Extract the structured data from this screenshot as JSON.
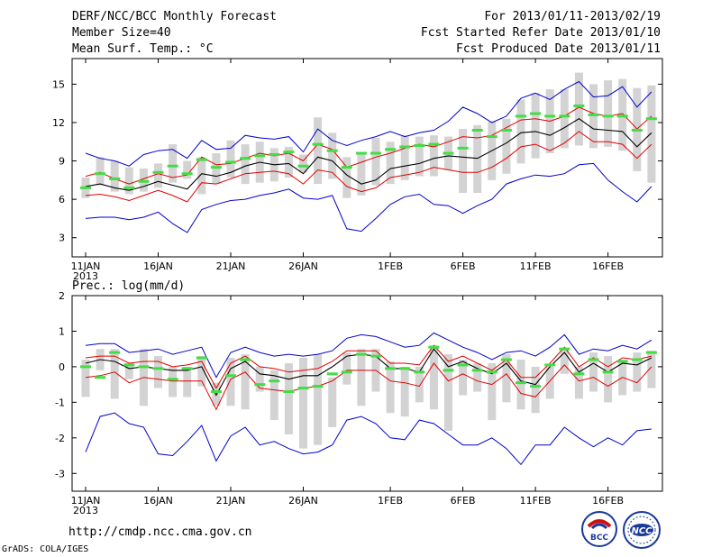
{
  "header": {
    "title": "DERF/NCC/BCC Monthly Forecast",
    "member": "Member Size=40",
    "period": "For 2013/01/11-2013/02/19",
    "started": "Fcst Started Refer Date 2013/01/10",
    "produced": "Fcst Produced Date 2013/01/11"
  },
  "footer": {
    "url": "http://cmdp.ncc.cma.gov.cn",
    "grads": "GrADS: COLA/IGES",
    "logo1_text": "BCC",
    "logo2_text": "NCC"
  },
  "colors": {
    "box": "#d3d3d3",
    "mean": "#000000",
    "spread": "#e00000",
    "extreme": "#0000cc",
    "obs": "#44dd44"
  },
  "chart_data": [
    {
      "type": "line",
      "title": "Mean Surf. Temp.: °C",
      "xlabel": "",
      "ylabel": "",
      "ylim": [
        1.5,
        17
      ],
      "yticks": [
        3,
        6,
        9,
        12,
        15
      ],
      "xtick_labels": [
        "11JAN",
        "16JAN",
        "21JAN",
        "26JAN",
        "1FEB",
        "6FEB",
        "11FEB",
        "16FEB"
      ],
      "xtick_year": "2013",
      "x": [
        1,
        2,
        3,
        4,
        5,
        6,
        7,
        8,
        9,
        10,
        11,
        12,
        13,
        14,
        15,
        16,
        17,
        18,
        19,
        20,
        21,
        22,
        23,
        24,
        25,
        26,
        27,
        28,
        29,
        30,
        31,
        32,
        33,
        34,
        35,
        36,
        37,
        38,
        39,
        40
      ],
      "series": [
        {
          "name": "max",
          "values": [
            9.6,
            9.2,
            9.0,
            8.6,
            9.5,
            9.8,
            9.9,
            9.2,
            10.6,
            9.9,
            10.0,
            11.0,
            10.8,
            10.7,
            10.9,
            9.7,
            11.5,
            10.6,
            10.2,
            10.6,
            10.9,
            11.3,
            10.9,
            11.2,
            11.4,
            12.1,
            13.2,
            12.7,
            12.0,
            12.5,
            13.9,
            14.3,
            13.8,
            14.6,
            15.2,
            14.0,
            14.1,
            14.8,
            13.2,
            14.4
          ]
        },
        {
          "name": "upper",
          "values": [
            7.8,
            8.1,
            7.6,
            7.2,
            7.6,
            8.0,
            7.7,
            7.9,
            9.3,
            8.7,
            8.8,
            9.2,
            9.6,
            9.4,
            9.6,
            9.0,
            10.3,
            9.9,
            8.5,
            8.9,
            9.3,
            9.6,
            10.0,
            10.3,
            10.1,
            10.5,
            10.9,
            10.8,
            11.0,
            11.6,
            12.2,
            12.3,
            12.1,
            12.5,
            13.2,
            12.7,
            12.5,
            12.7,
            11.5,
            12.5
          ]
        },
        {
          "name": "mean",
          "values": [
            7.0,
            7.2,
            6.9,
            6.7,
            7.0,
            7.4,
            7.1,
            6.8,
            8.0,
            7.8,
            8.1,
            8.6,
            8.9,
            8.7,
            8.8,
            8.0,
            9.3,
            9.0,
            7.9,
            7.2,
            7.5,
            8.4,
            8.6,
            8.8,
            9.2,
            9.4,
            9.3,
            9.2,
            9.8,
            10.4,
            11.2,
            11.3,
            11.0,
            11.6,
            12.3,
            11.5,
            11.4,
            11.3,
            10.1,
            11.2
          ]
        },
        {
          "name": "lower",
          "values": [
            6.3,
            6.4,
            6.2,
            5.9,
            6.3,
            6.7,
            6.3,
            5.8,
            7.3,
            7.2,
            7.6,
            8.0,
            8.1,
            8.2,
            8.0,
            7.2,
            8.3,
            8.1,
            7.0,
            6.6,
            6.9,
            7.7,
            7.9,
            8.1,
            8.5,
            8.3,
            8.1,
            8.1,
            8.5,
            9.2,
            10.1,
            10.3,
            9.8,
            10.4,
            11.3,
            10.5,
            10.5,
            10.3,
            9.2,
            10.3
          ]
        },
        {
          "name": "min",
          "values": [
            4.5,
            4.6,
            4.6,
            4.4,
            4.6,
            5.0,
            4.1,
            3.4,
            5.2,
            5.6,
            5.9,
            6.0,
            6.3,
            6.5,
            6.8,
            6.1,
            6.0,
            6.3,
            3.7,
            3.5,
            4.5,
            5.6,
            6.2,
            6.4,
            5.6,
            5.5,
            4.9,
            5.5,
            6.0,
            7.2,
            7.6,
            7.9,
            7.8,
            8.0,
            8.7,
            8.8,
            7.5,
            6.6,
            5.8,
            7.0
          ]
        }
      ],
      "boxes": [
        [
          6.1,
          7.7
        ],
        [
          7.1,
          9.3
        ],
        [
          6.6,
          9.0
        ],
        [
          6.4,
          8.5
        ],
        [
          6.6,
          8.4
        ],
        [
          6.9,
          8.8
        ],
        [
          7.3,
          10.3
        ],
        [
          7.6,
          9.0
        ],
        [
          6.4,
          9.3
        ],
        [
          7.2,
          9.6
        ],
        [
          7.7,
          10.6
        ],
        [
          7.2,
          10.3
        ],
        [
          7.3,
          10.5
        ],
        [
          7.4,
          10.0
        ],
        [
          7.7,
          10.1
        ],
        [
          8.1,
          9.5
        ],
        [
          7.2,
          12.4
        ],
        [
          7.6,
          11.2
        ],
        [
          6.1,
          9.3
        ],
        [
          6.3,
          9.5
        ],
        [
          7.1,
          10.8
        ],
        [
          7.2,
          10.5
        ],
        [
          7.5,
          11.0
        ],
        [
          7.8,
          10.9
        ],
        [
          7.8,
          11.0
        ],
        [
          8.3,
          10.9
        ],
        [
          6.5,
          11.5
        ],
        [
          6.5,
          11.8
        ],
        [
          7.5,
          12.1
        ],
        [
          8.0,
          12.3
        ],
        [
          8.8,
          13.8
        ],
        [
          9.2,
          14.3
        ],
        [
          9.6,
          14.6
        ],
        [
          10.0,
          14.6
        ],
        [
          10.2,
          15.9
        ],
        [
          10.0,
          15.0
        ],
        [
          10.1,
          15.3
        ],
        [
          9.8,
          15.4
        ],
        [
          8.2,
          14.7
        ],
        [
          7.3,
          14.9
        ]
      ],
      "observed": [
        6.9,
        8.0,
        7.6,
        6.9,
        7.4,
        8.1,
        8.6,
        8.0,
        9.1,
        8.5,
        8.9,
        9.2,
        9.4,
        9.5,
        9.7,
        8.6,
        10.3,
        9.8,
        8.5,
        9.6,
        9.6,
        9.9,
        10.1,
        10.2,
        10.3,
        9.6,
        10.0,
        11.4,
        10.9,
        11.4,
        12.5,
        12.7,
        12.5,
        12.5,
        13.3,
        12.6,
        12.5,
        12.5,
        11.4,
        12.3
      ]
    },
    {
      "type": "line",
      "title": "Prec.: log(mm/d)",
      "xlabel": "",
      "ylabel": "",
      "ylim": [
        -3.5,
        2
      ],
      "yticks": [
        -3,
        -2,
        -1,
        0,
        1,
        2
      ],
      "xtick_labels": [
        "11JAN",
        "16JAN",
        "21JAN",
        "26JAN",
        "1FEB",
        "6FEB",
        "11FEB",
        "16FEB"
      ],
      "xtick_year": "2013",
      "x": [
        1,
        2,
        3,
        4,
        5,
        6,
        7,
        8,
        9,
        10,
        11,
        12,
        13,
        14,
        15,
        16,
        17,
        18,
        19,
        20,
        21,
        22,
        23,
        24,
        25,
        26,
        27,
        28,
        29,
        30,
        31,
        32,
        33,
        34,
        35,
        36,
        37,
        38,
        39,
        40
      ],
      "series": [
        {
          "name": "max",
          "values": [
            0.6,
            0.65,
            0.65,
            0.4,
            0.45,
            0.5,
            0.35,
            0.45,
            0.55,
            -0.3,
            0.4,
            0.55,
            0.4,
            0.3,
            0.35,
            0.3,
            0.35,
            0.45,
            0.8,
            0.9,
            0.85,
            0.7,
            0.55,
            0.6,
            0.95,
            0.75,
            0.55,
            0.4,
            0.2,
            0.4,
            0.45,
            0.3,
            0.55,
            0.9,
            0.35,
            0.5,
            0.45,
            0.6,
            0.5,
            0.75
          ]
        },
        {
          "name": "upper",
          "values": [
            0.25,
            0.3,
            0.3,
            0.1,
            0.15,
            0.15,
            0.0,
            0.05,
            0.15,
            -0.6,
            0.1,
            0.3,
            0.0,
            -0.05,
            -0.15,
            -0.1,
            -0.05,
            0.15,
            0.45,
            0.45,
            0.45,
            0.1,
            0.1,
            0.05,
            0.6,
            0.15,
            0.3,
            0.1,
            -0.1,
            0.2,
            -0.3,
            -0.3,
            0.1,
            0.55,
            0.0,
            0.25,
            0.0,
            0.25,
            0.2,
            0.3
          ]
        },
        {
          "name": "mean",
          "values": [
            0.1,
            0.2,
            0.15,
            -0.05,
            0.0,
            -0.05,
            -0.1,
            -0.1,
            0.0,
            -0.8,
            -0.05,
            0.15,
            -0.2,
            -0.25,
            -0.35,
            -0.25,
            -0.25,
            0.0,
            0.3,
            0.35,
            0.3,
            -0.05,
            -0.05,
            -0.15,
            0.5,
            0.0,
            0.15,
            -0.05,
            -0.2,
            0.1,
            -0.4,
            -0.5,
            0.0,
            0.4,
            -0.15,
            0.1,
            -0.15,
            0.1,
            0.05,
            0.25
          ]
        },
        {
          "name": "lower",
          "values": [
            -0.3,
            -0.25,
            -0.15,
            -0.45,
            -0.3,
            -0.35,
            -0.4,
            -0.4,
            -0.4,
            -1.2,
            -0.35,
            -0.15,
            -0.6,
            -0.65,
            -0.7,
            -0.6,
            -0.55,
            -0.4,
            -0.1,
            -0.1,
            -0.1,
            -0.4,
            -0.45,
            -0.55,
            0.1,
            -0.4,
            -0.2,
            -0.4,
            -0.5,
            -0.2,
            -0.75,
            -0.85,
            -0.4,
            0.05,
            -0.4,
            -0.3,
            -0.55,
            -0.3,
            -0.45,
            0.0
          ]
        },
        {
          "name": "min",
          "values": [
            -2.4,
            -1.4,
            -1.3,
            -1.6,
            -1.7,
            -2.45,
            -2.5,
            -2.1,
            -1.65,
            -2.65,
            -1.95,
            -1.7,
            -2.2,
            -2.1,
            -2.3,
            -2.45,
            -2.4,
            -2.2,
            -1.5,
            -1.4,
            -1.6,
            -2.0,
            -2.05,
            -1.5,
            -1.6,
            -1.9,
            -2.2,
            -2.2,
            -2.0,
            -2.3,
            -2.75,
            -2.2,
            -2.2,
            -1.7,
            -2.0,
            -2.25,
            -2.0,
            -2.2,
            -1.8,
            -1.75
          ]
        }
      ],
      "boxes": [
        [
          -0.85,
          0.2
        ],
        [
          -0.1,
          0.5
        ],
        [
          -0.9,
          0.5
        ],
        [
          -0.35,
          0.1
        ],
        [
          -1.1,
          0.5
        ],
        [
          -0.6,
          0.3
        ],
        [
          -0.85,
          0.0
        ],
        [
          -0.85,
          0.0
        ],
        [
          -0.55,
          0.3
        ],
        [
          -1.1,
          -0.45
        ],
        [
          -1.1,
          0.25
        ],
        [
          -1.2,
          0.35
        ],
        [
          -0.7,
          0.0
        ],
        [
          -1.5,
          -0.1
        ],
        [
          -1.9,
          0.1
        ],
        [
          -2.3,
          0.25
        ],
        [
          -2.2,
          0.35
        ],
        [
          -1.7,
          -0.3
        ],
        [
          -0.5,
          0.4
        ],
        [
          -1.1,
          0.5
        ],
        [
          -0.7,
          0.5
        ],
        [
          -1.3,
          0.15
        ],
        [
          -1.4,
          0.0
        ],
        [
          -1.0,
          0.0
        ],
        [
          -1.2,
          0.6
        ],
        [
          -1.8,
          0.35
        ],
        [
          -0.8,
          0.2
        ],
        [
          -0.7,
          0.1
        ],
        [
          -1.5,
          0.1
        ],
        [
          -1.0,
          0.35
        ],
        [
          -1.2,
          0.2
        ],
        [
          -1.3,
          0.0
        ],
        [
          -0.9,
          0.0
        ],
        [
          -0.2,
          0.5
        ],
        [
          -0.9,
          0.0
        ],
        [
          -0.7,
          0.4
        ],
        [
          -1.0,
          0.3
        ],
        [
          -0.8,
          0.2
        ],
        [
          -0.7,
          0.4
        ],
        [
          -0.6,
          0.45
        ]
      ],
      "observed": [
        0.0,
        -0.3,
        0.4,
        0.05,
        0.0,
        -0.05,
        -0.35,
        -0.05,
        0.25,
        -0.7,
        -0.25,
        0.2,
        -0.5,
        -0.4,
        -0.7,
        -0.6,
        -0.55,
        -0.2,
        -0.15,
        0.35,
        0.3,
        -0.05,
        -0.05,
        -0.15,
        0.55,
        -0.1,
        0.05,
        -0.1,
        -0.15,
        0.2,
        -0.45,
        -0.55,
        0.05,
        0.5,
        -0.2,
        0.2,
        -0.15,
        0.15,
        0.2,
        0.4
      ]
    }
  ]
}
